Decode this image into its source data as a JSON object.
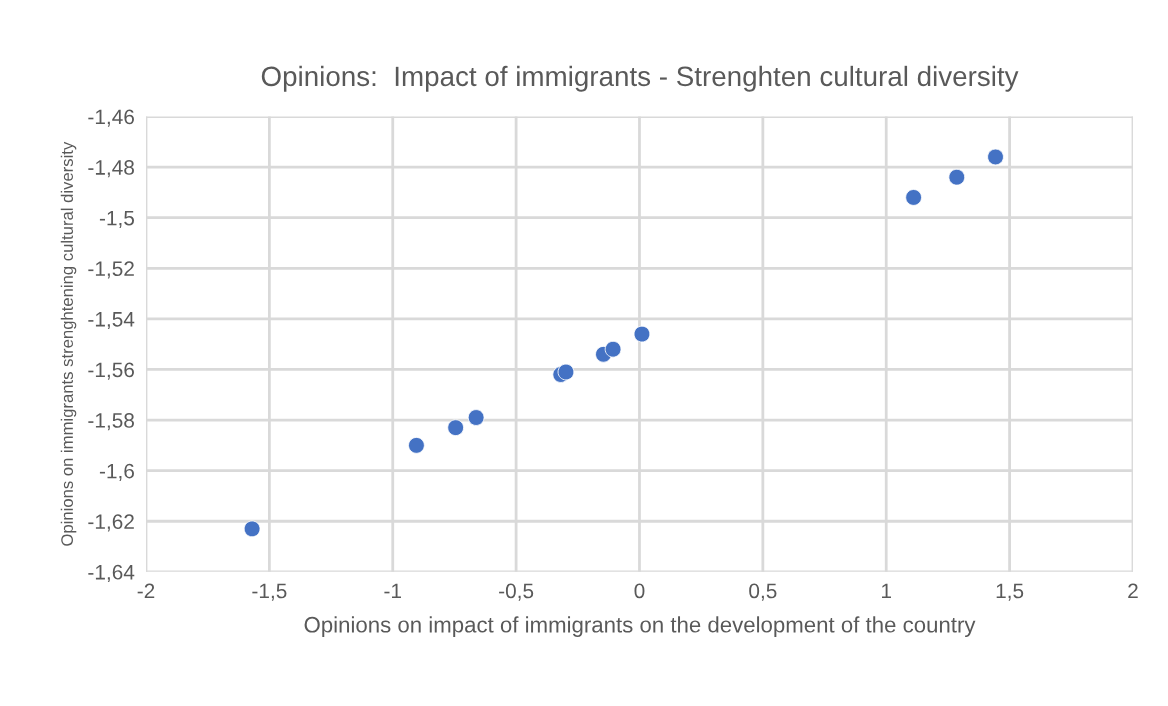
{
  "chart_data": {
    "type": "scatter",
    "title": "Opinions:  Impact of immigrants - Strenghten cultural diversity",
    "xlabel": "Opinions on impact of immigrants on the development of the country",
    "ylabel": "Opinions on immigrants strenghtening cultural diversity",
    "x": [
      -1.57,
      -0.904,
      -0.745,
      -0.662,
      -0.319,
      -0.298,
      -0.146,
      -0.107,
      0.01,
      1.111,
      1.286,
      1.443
    ],
    "values": [
      -1.623,
      -1.59,
      -1.583,
      -1.579,
      -1.562,
      -1.561,
      -1.554,
      -1.552,
      -1.546,
      -1.492,
      -1.484,
      -1.476
    ],
    "color": "#4472c4",
    "marker": "circle",
    "xlim": [
      -2,
      2
    ],
    "xticks": [
      -2,
      {
        "value": -1.5,
        "label": "-1,5"
      },
      -1,
      {
        "value": -0.5,
        "label": "-0,5"
      },
      0,
      {
        "value": 0.5,
        "label": "0,5"
      },
      1,
      {
        "value": 1.5,
        "label": "1,5"
      },
      2
    ],
    "ylim": [
      -1.64,
      -1.46
    ],
    "yticks": [
      {
        "value": -1.64,
        "label": "-1,64"
      },
      {
        "value": -1.62,
        "label": "-1,62"
      },
      {
        "value": -1.6,
        "label": "-1,6"
      },
      {
        "value": -1.58,
        "label": "-1,58"
      },
      {
        "value": -1.56,
        "label": "-1,56"
      },
      {
        "value": -1.54,
        "label": "-1,54"
      },
      {
        "value": -1.52,
        "label": "-1,52"
      },
      {
        "value": -1.5,
        "label": "-1,5"
      },
      {
        "value": -1.48,
        "label": "-1,48"
      },
      {
        "value": -1.46,
        "label": "-1,46"
      }
    ],
    "grid": true
  }
}
